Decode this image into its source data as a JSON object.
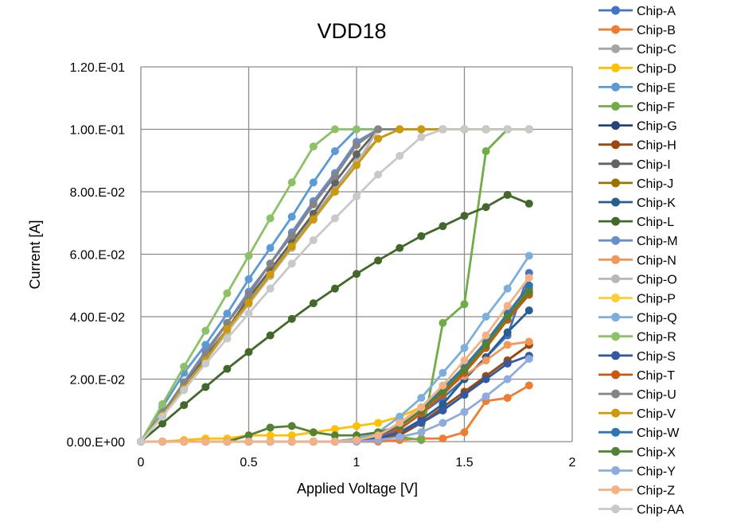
{
  "chart_data": {
    "type": "line",
    "title": "VDD18",
    "xlabel": "Applied Voltage [V]",
    "ylabel": "Current [A]",
    "xlim": [
      0,
      2
    ],
    "ylim": [
      0,
      0.12
    ],
    "x_ticks": [
      0,
      0.5,
      1,
      1.5,
      2
    ],
    "x_tick_labels": [
      "0",
      "0.5",
      "1",
      "1.5",
      "2"
    ],
    "y_ticks": [
      0,
      0.02,
      0.04,
      0.06,
      0.08,
      0.1,
      0.12
    ],
    "y_tick_labels": [
      "0.00.E+00",
      "2.00.E-02",
      "4.00.E-02",
      "6.00.E-02",
      "8.00.E-02",
      "1.00.E-01",
      "1.20.E-01"
    ],
    "grid": true,
    "legend_position": "right",
    "x": [
      0,
      0.1,
      0.2,
      0.3,
      0.4,
      0.5,
      0.6,
      0.7,
      0.8,
      0.9,
      1.0,
      1.1,
      1.2,
      1.3,
      1.4,
      1.5,
      1.6,
      1.7,
      1.8
    ],
    "series": [
      {
        "name": "Chip-A",
        "color": "#4472C4",
        "values": [
          0,
          0,
          0,
          0,
          0,
          0,
          0,
          0,
          0,
          0,
          0.0005,
          0.001,
          0.004,
          0.009,
          0.014,
          0.02,
          0.027,
          0.034,
          0.054
        ]
      },
      {
        "name": "Chip-B",
        "color": "#ED7D31",
        "values": [
          0,
          0,
          0,
          0,
          0,
          0,
          0,
          0,
          0,
          0,
          0,
          0,
          0.0005,
          0.001,
          0.001,
          0.003,
          0.013,
          0.014,
          0.018
        ]
      },
      {
        "name": "Chip-C",
        "color": "#A5A5A5",
        "values": [
          0,
          0.009,
          0.018,
          0.027,
          0.036,
          0.045,
          0.054,
          0.063,
          0.072,
          0.081,
          0.09,
          0.097,
          0.1,
          0.1,
          0.1,
          0.1,
          0.1,
          0.1,
          0.1
        ]
      },
      {
        "name": "Chip-D",
        "color": "#FFC000",
        "values": [
          0,
          0,
          0.0005,
          0.001,
          0.001,
          0.002,
          0.002,
          0.002,
          0.003,
          0.004,
          0.005,
          0.006,
          0.008,
          0.011,
          0.015,
          0.022,
          0.03,
          0.04,
          0.05
        ]
      },
      {
        "name": "Chip-E",
        "color": "#5B9BD5",
        "values": [
          0,
          0.011,
          0.022,
          0.031,
          0.041,
          0.052,
          0.062,
          0.072,
          0.083,
          0.093,
          0.1,
          0.1,
          0.1,
          0.1,
          0.1,
          0.1,
          0.1,
          0.1,
          0.1
        ]
      },
      {
        "name": "Chip-F",
        "color": "#70AD47",
        "values": [
          0,
          0,
          0,
          0,
          0,
          0,
          0,
          0,
          0,
          0,
          0.001,
          0.001,
          0.0015,
          0.0005,
          0.038,
          0.044,
          0.093,
          0.1,
          0.1
        ]
      },
      {
        "name": "Chip-G",
        "color": "#264478",
        "values": [
          0,
          0,
          0,
          0,
          0,
          0,
          0,
          0,
          0,
          0,
          0.0005,
          0.001,
          0.003,
          0.006,
          0.01,
          0.015,
          0.021,
          0.026,
          0.031
        ]
      },
      {
        "name": "Chip-H",
        "color": "#9E480E",
        "values": [
          0,
          0,
          0,
          0,
          0,
          0,
          0,
          0,
          0,
          0,
          0.0005,
          0.001,
          0.002,
          0.006,
          0.011,
          0.016,
          0.021,
          0.026,
          0.031
        ]
      },
      {
        "name": "Chip-I",
        "color": "#636363",
        "values": [
          0,
          0.009,
          0.018,
          0.027,
          0.036,
          0.046,
          0.055,
          0.064,
          0.073,
          0.083,
          0.092,
          0.1,
          0.1,
          0.1,
          0.1,
          0.1,
          0.1,
          0.1,
          0.1
        ]
      },
      {
        "name": "Chip-J",
        "color": "#997300",
        "values": [
          0,
          0,
          0,
          0,
          0,
          0,
          0,
          0,
          0,
          0,
          0.0005,
          0.002,
          0.005,
          0.01,
          0.016,
          0.023,
          0.031,
          0.04,
          0.049
        ]
      },
      {
        "name": "Chip-K",
        "color": "#255E91",
        "values": [
          0,
          0,
          0,
          0,
          0,
          0,
          0,
          0,
          0,
          0,
          0.0005,
          0.001,
          0.003,
          0.007,
          0.012,
          0.02,
          0.027,
          0.035,
          0.042
        ]
      },
      {
        "name": "Chip-L",
        "color": "#43682B",
        "values": [
          0,
          0.0058,
          0.0117,
          0.0175,
          0.0233,
          0.0287,
          0.034,
          0.0393,
          0.0443,
          0.049,
          0.0537,
          0.058,
          0.062,
          0.0658,
          0.069,
          0.0723,
          0.0751,
          0.079,
          0.0762
        ]
      },
      {
        "name": "Chip-M",
        "color": "#698ED0",
        "values": [
          0,
          0.009,
          0.019,
          0.029,
          0.038,
          0.048,
          0.057,
          0.067,
          0.077,
          0.086,
          0.096,
          0.1,
          0.1,
          0.1,
          0.1,
          0.1,
          0.1,
          0.1,
          0.1
        ]
      },
      {
        "name": "Chip-N",
        "color": "#F1975A",
        "values": [
          0,
          0,
          0,
          0,
          0,
          0,
          0,
          0,
          0,
          0,
          0.0005,
          0.002,
          0.006,
          0.011,
          0.016,
          0.021,
          0.026,
          0.031,
          0.032
        ]
      },
      {
        "name": "Chip-O",
        "color": "#B7B7B7",
        "values": [
          0,
          0.0085,
          0.0175,
          0.026,
          0.035,
          0.044,
          0.053,
          0.062,
          0.071,
          0.08,
          0.089,
          0.1,
          0.1,
          0.1,
          0.1,
          0.1,
          0.1,
          0.1,
          0.1
        ]
      },
      {
        "name": "Chip-P",
        "color": "#FFCD33",
        "values": [
          0,
          0,
          0,
          0,
          0,
          0,
          0,
          0,
          0,
          0,
          0.0005,
          0.002,
          0.005,
          0.01,
          0.016,
          0.023,
          0.031,
          0.04,
          0.048
        ]
      },
      {
        "name": "Chip-Q",
        "color": "#7CAFDD",
        "values": [
          0,
          0,
          0,
          0,
          0,
          0,
          0,
          0,
          0,
          0,
          0.001,
          0.003,
          0.008,
          0.014,
          0.022,
          0.03,
          0.04,
          0.049,
          0.0595
        ]
      },
      {
        "name": "Chip-R",
        "color": "#8CC168",
        "values": [
          0,
          0.012,
          0.024,
          0.0355,
          0.0475,
          0.0595,
          0.0715,
          0.083,
          0.0945,
          0.1,
          0.1,
          0.1,
          0.1,
          0.1,
          0.1,
          0.1,
          0.1,
          0.1,
          0.1
        ]
      },
      {
        "name": "Chip-S",
        "color": "#335AA1",
        "values": [
          0,
          0,
          0,
          0,
          0,
          0,
          0,
          0,
          0,
          0,
          0.0005,
          0.001,
          0.003,
          0.006,
          0.01,
          0.015,
          0.02,
          0.025,
          0.0275
        ]
      },
      {
        "name": "Chip-T",
        "color": "#C55A11",
        "values": [
          0,
          0,
          0,
          0,
          0,
          0,
          0,
          0,
          0,
          0,
          0.0005,
          0.002,
          0.004,
          0.009,
          0.015,
          0.022,
          0.03,
          0.039,
          0.047
        ]
      },
      {
        "name": "Chip-U",
        "color": "#848484",
        "values": [
          0,
          0.009,
          0.019,
          0.028,
          0.038,
          0.047,
          0.057,
          0.066,
          0.076,
          0.085,
          0.095,
          0.1,
          0.1,
          0.1,
          0.1,
          0.1,
          0.1,
          0.1,
          0.1
        ]
      },
      {
        "name": "Chip-V",
        "color": "#CC9A06",
        "values": [
          0,
          0.0085,
          0.017,
          0.026,
          0.036,
          0.0445,
          0.0535,
          0.0625,
          0.0712,
          0.08,
          0.0885,
          0.097,
          0.1,
          0.1,
          0.1,
          0.1,
          0.1,
          0.1,
          0.1
        ]
      },
      {
        "name": "Chip-W",
        "color": "#2E75B6",
        "values": [
          0,
          0,
          0,
          0,
          0,
          0,
          0,
          0,
          0,
          0,
          0.0005,
          0.002,
          0.005,
          0.01,
          0.017,
          0.024,
          0.032,
          0.041,
          0.05
        ]
      },
      {
        "name": "Chip-X",
        "color": "#548235",
        "values": [
          0,
          0,
          0,
          0,
          0,
          0.002,
          0.0045,
          0.005,
          0.003,
          0.002,
          0.002,
          0.003,
          0.005,
          0.01,
          0.016,
          0.023,
          0.031,
          0.04,
          0.048
        ]
      },
      {
        "name": "Chip-Y",
        "color": "#8FAADC",
        "values": [
          0,
          0,
          0,
          0,
          0,
          0,
          0,
          0,
          0,
          0,
          0,
          0.0005,
          0.0015,
          0.003,
          0.006,
          0.0095,
          0.0145,
          0.02,
          0.0265
        ]
      },
      {
        "name": "Chip-Z",
        "color": "#F4B183",
        "values": [
          0,
          0,
          0,
          0,
          0,
          0,
          0,
          0,
          0,
          0,
          0.0005,
          0.002,
          0.006,
          0.011,
          0.018,
          0.026,
          0.034,
          0.0435,
          0.0525
        ]
      },
      {
        "name": "Chip-AA",
        "color": "#C9C9C9",
        "values": [
          0,
          0.008,
          0.0165,
          0.025,
          0.033,
          0.041,
          0.049,
          0.057,
          0.0645,
          0.0715,
          0.0785,
          0.0855,
          0.0915,
          0.0975,
          0.1,
          0.1,
          0.1,
          0.1,
          0.1
        ]
      }
    ]
  }
}
